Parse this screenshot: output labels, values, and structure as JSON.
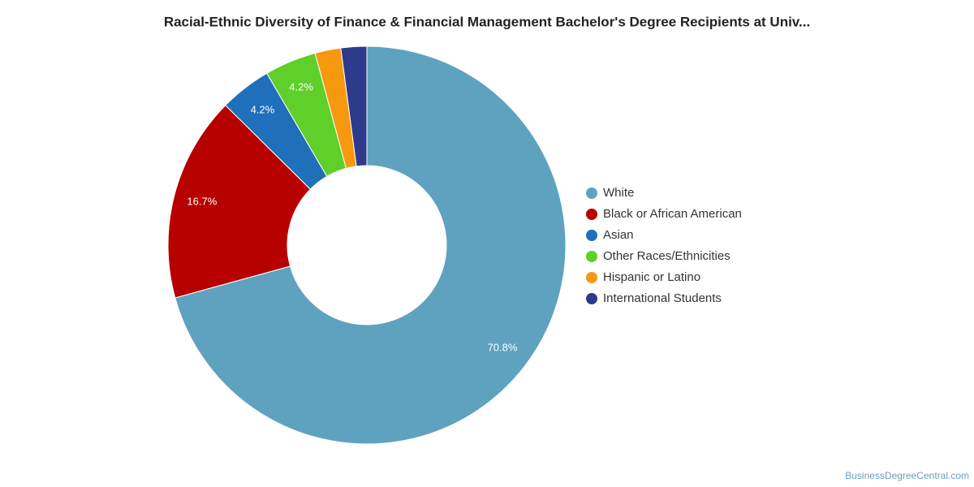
{
  "chart_data": {
    "type": "donut",
    "title": "Racial-Ethnic Diversity of Finance & Financial Management Bachelor's Degree Recipients at Univ...",
    "categories": [
      "White",
      "Black or African American",
      "Asian",
      "Other Races/Ethnicities",
      "Hispanic or Latino",
      "International Students"
    ],
    "values": [
      70.8,
      16.7,
      4.2,
      4.2,
      2.1,
      2.1
    ],
    "value_labels": [
      "70.8%",
      "16.7%",
      "4.2%",
      "4.2%",
      null,
      null
    ],
    "colors": [
      "#5ea2bf",
      "#b70000",
      "#1f6fba",
      "#5fcf2a",
      "#f6990f",
      "#2e3a8c"
    ],
    "legend": "right",
    "source": "BusinessDegreeCentral.com"
  }
}
